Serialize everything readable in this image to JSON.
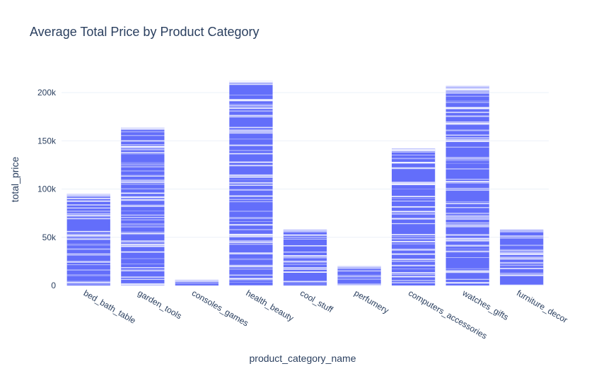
{
  "chart_data": {
    "type": "bar",
    "title": "Average Total Price by Product Category",
    "xlabel": "product_category_name",
    "ylabel": "total_price",
    "categories": [
      "bed_bath_table",
      "garden_tools",
      "consoles_games",
      "health_beauty",
      "cool_stuff",
      "perfumery",
      "computers_accessories",
      "watches_gifts",
      "furniture_decor"
    ],
    "values": [
      95000,
      164000,
      6000,
      212000,
      58000,
      20000,
      142000,
      207000,
      58000
    ],
    "ylim": [
      0,
      225000
    ],
    "yticks": [
      0,
      50000,
      100000,
      150000,
      200000
    ],
    "ytick_labels": [
      "0",
      "50k",
      "100k",
      "150k",
      "200k"
    ],
    "grid": true,
    "bar_color": "#636efa",
    "stack_line_color": "#ffffff",
    "note_stacked_segments": "bars are composed of many thin stacked segments"
  }
}
